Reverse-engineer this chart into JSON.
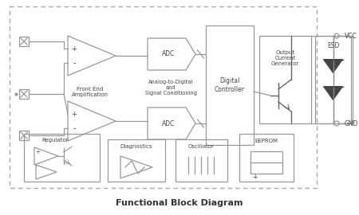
{
  "title": "Functional Block Diagram",
  "bg_color": "#ffffff",
  "box_color": "#999999",
  "text_color": "#444444",
  "line_color": "#aaaaaa",
  "vcc_label": "VCC",
  "gnd_label": "GND",
  "figsize": [
    4.5,
    2.7
  ],
  "dpi": 100
}
